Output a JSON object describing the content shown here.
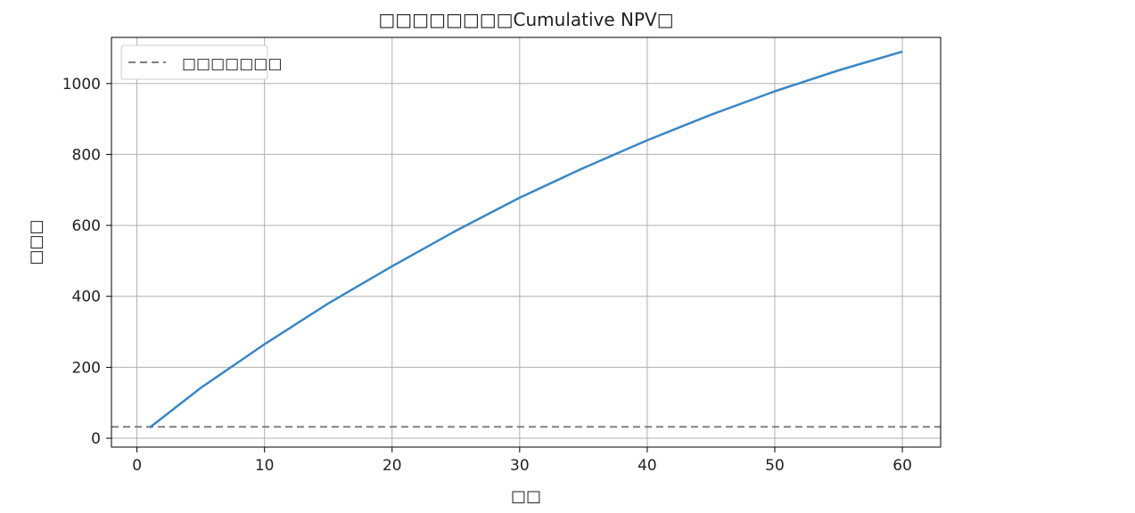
{
  "chart_data": {
    "type": "line",
    "title": "□□□□□□□□Cumulative NPV□",
    "xlabel": "□□",
    "ylabel": "□□□",
    "xlim": [
      -2,
      63
    ],
    "ylim": [
      -25,
      1130
    ],
    "x_ticks": [
      0,
      10,
      20,
      30,
      40,
      50,
      60
    ],
    "y_ticks": [
      0,
      200,
      400,
      600,
      800,
      1000
    ],
    "grid": true,
    "legend_position": "top-left",
    "series": [
      {
        "color": "#3a87c4",
        "x": [
          1,
          5,
          10,
          15,
          20,
          25,
          30,
          35,
          40,
          45,
          50,
          55,
          60
        ],
        "y": [
          30,
          142,
          265,
          380,
          485,
          585,
          678,
          762,
          840,
          912,
          978,
          1037,
          1090
        ]
      }
    ],
    "reference_lines": [
      {
        "label": "□□□□□□□",
        "y": 32,
        "color": "#808080",
        "style": "dashed"
      }
    ]
  }
}
